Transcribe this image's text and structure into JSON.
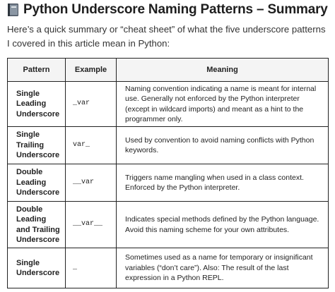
{
  "title": "Python Underscore Naming Patterns – Summary",
  "intro": "Here’s a quick summary or “cheat sheet” of what the five underscore patterns I covered in this article mean in Python:",
  "table": {
    "headers": [
      "Pattern",
      "Example",
      "Meaning"
    ],
    "rows": [
      {
        "pattern": "Single Leading Underscore",
        "example": "_var",
        "meaning": "Naming convention indicating a name is meant for internal use. Generally not enforced by the Python interpreter (except in wildcard imports) and meant as a hint to the programmer only."
      },
      {
        "pattern": "Single Trailing Underscore",
        "example": "var_",
        "meaning": "Used by convention to avoid naming conflicts with Python keywords."
      },
      {
        "pattern": "Double Leading Underscore",
        "example": "__var",
        "meaning": "Triggers name mangling when used in a class context. Enforced by the Python interpreter."
      },
      {
        "pattern": "Double Leading and Trailing Underscore",
        "example": "__var__",
        "meaning": "Indicates special methods defined by the Python language. Avoid this naming scheme for your own attributes."
      },
      {
        "pattern": "Single Underscore",
        "example": "_",
        "meaning": "Sometimes used as a name for temporary or insignificant variables (“don’t care”). Also: The result of the last expression in a Python REPL."
      }
    ]
  },
  "icons": {
    "title_icon": "book-icon"
  }
}
